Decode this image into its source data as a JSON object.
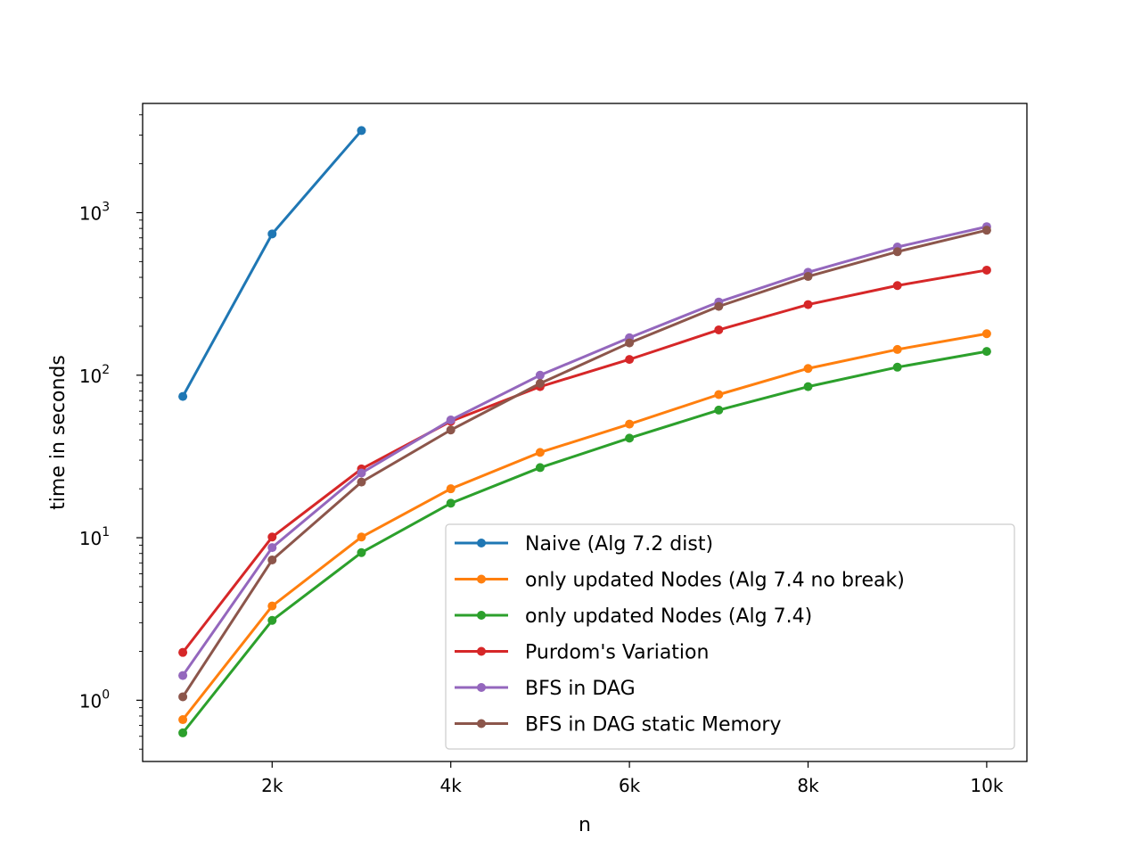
{
  "chart_data": {
    "type": "line",
    "title": "",
    "xlabel": "n",
    "ylabel": "time in seconds",
    "yscale": "log",
    "xlim": [
      550,
      10450
    ],
    "ylim": [
      0.42,
      4700
    ],
    "x_ticks": [
      {
        "value": 2000,
        "label": "2k"
      },
      {
        "value": 4000,
        "label": "4k"
      },
      {
        "value": 6000,
        "label": "6k"
      },
      {
        "value": 8000,
        "label": "8k"
      },
      {
        "value": 10000,
        "label": "10k"
      }
    ],
    "y_ticks": [
      {
        "value": 1,
        "base": "10",
        "exp": "0"
      },
      {
        "value": 10,
        "base": "10",
        "exp": "1"
      },
      {
        "value": 100,
        "base": "10",
        "exp": "2"
      },
      {
        "value": 1000,
        "base": "10",
        "exp": "3"
      }
    ],
    "legend_position": "lower-right",
    "series": [
      {
        "name": "Naive (Alg 7.2 dist)",
        "color": "#1f77b4",
        "x": [
          1000,
          2000,
          3000
        ],
        "y": [
          74,
          740,
          3200
        ]
      },
      {
        "name": "only updated Nodes (Alg 7.4 no break)",
        "color": "#ff7f0e",
        "x": [
          1000,
          2000,
          3000,
          4000,
          5000,
          6000,
          7000,
          8000,
          9000,
          10000
        ],
        "y": [
          0.76,
          3.8,
          10.1,
          20,
          33.5,
          50,
          76,
          110,
          144,
          180
        ]
      },
      {
        "name": "only updated Nodes (Alg 7.4)",
        "color": "#2ca02c",
        "x": [
          1000,
          2000,
          3000,
          4000,
          5000,
          6000,
          7000,
          8000,
          9000,
          10000
        ],
        "y": [
          0.63,
          3.1,
          8.1,
          16.3,
          27,
          41,
          61,
          85,
          112,
          140
        ]
      },
      {
        "name": "Purdom's Variation",
        "color": "#d62728",
        "x": [
          1000,
          2000,
          3000,
          4000,
          5000,
          6000,
          7000,
          8000,
          9000,
          10000
        ],
        "y": [
          1.97,
          10.1,
          26.5,
          52,
          85,
          125,
          190,
          272,
          356,
          443
        ]
      },
      {
        "name": "BFS in DAG",
        "color": "#9467bd",
        "x": [
          1000,
          2000,
          3000,
          4000,
          5000,
          6000,
          7000,
          8000,
          9000,
          10000
        ],
        "y": [
          1.42,
          8.7,
          25,
          53,
          100,
          170,
          282,
          430,
          615,
          820
        ]
      },
      {
        "name": "BFS in DAG static Memory",
        "color": "#8c564b",
        "x": [
          1000,
          2000,
          3000,
          4000,
          5000,
          6000,
          7000,
          8000,
          9000,
          10000
        ],
        "y": [
          1.05,
          7.3,
          22,
          46,
          89,
          158,
          265,
          405,
          575,
          780
        ]
      }
    ]
  }
}
